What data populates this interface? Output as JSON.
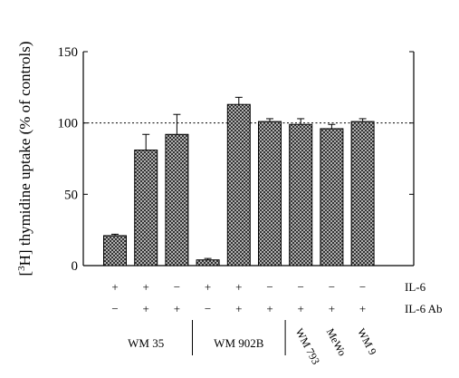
{
  "chart_data": {
    "type": "bar",
    "title": "",
    "ylabel_prefix": "[",
    "ylabel_sup": "3",
    "ylabel_suffix": "H] thymidine uptake (% of controls)",
    "xlabel": "",
    "ylim": [
      0,
      150
    ],
    "yticks": [
      "0",
      "50",
      "100",
      "150"
    ],
    "reference_line": 100,
    "grid": false,
    "bar_pattern": "crosshatch",
    "values": [
      21,
      81,
      92,
      4,
      113,
      101,
      99,
      96,
      101
    ],
    "errors": [
      1,
      11,
      14,
      1,
      5,
      2,
      4,
      3,
      2
    ],
    "conditions": [
      {
        "name": "IL-6",
        "signs": [
          "+",
          "+",
          "−",
          "+",
          "+",
          "−",
          "−",
          "−",
          "−"
        ]
      },
      {
        "name": "IL-6 Ab",
        "signs": [
          "−",
          "+",
          "+",
          "−",
          "+",
          "+",
          "+",
          "+",
          "+"
        ]
      }
    ],
    "groups": [
      {
        "label": "WM 35",
        "bars": [
          0,
          2
        ]
      },
      {
        "label": "WM 902B",
        "bars": [
          3,
          5
        ]
      }
    ],
    "cell_lines": [
      {
        "label": "WM 793",
        "bar": 6
      },
      {
        "label": "MeWo",
        "bar": 7
      },
      {
        "label": "WM 9",
        "bar": 8
      }
    ]
  }
}
